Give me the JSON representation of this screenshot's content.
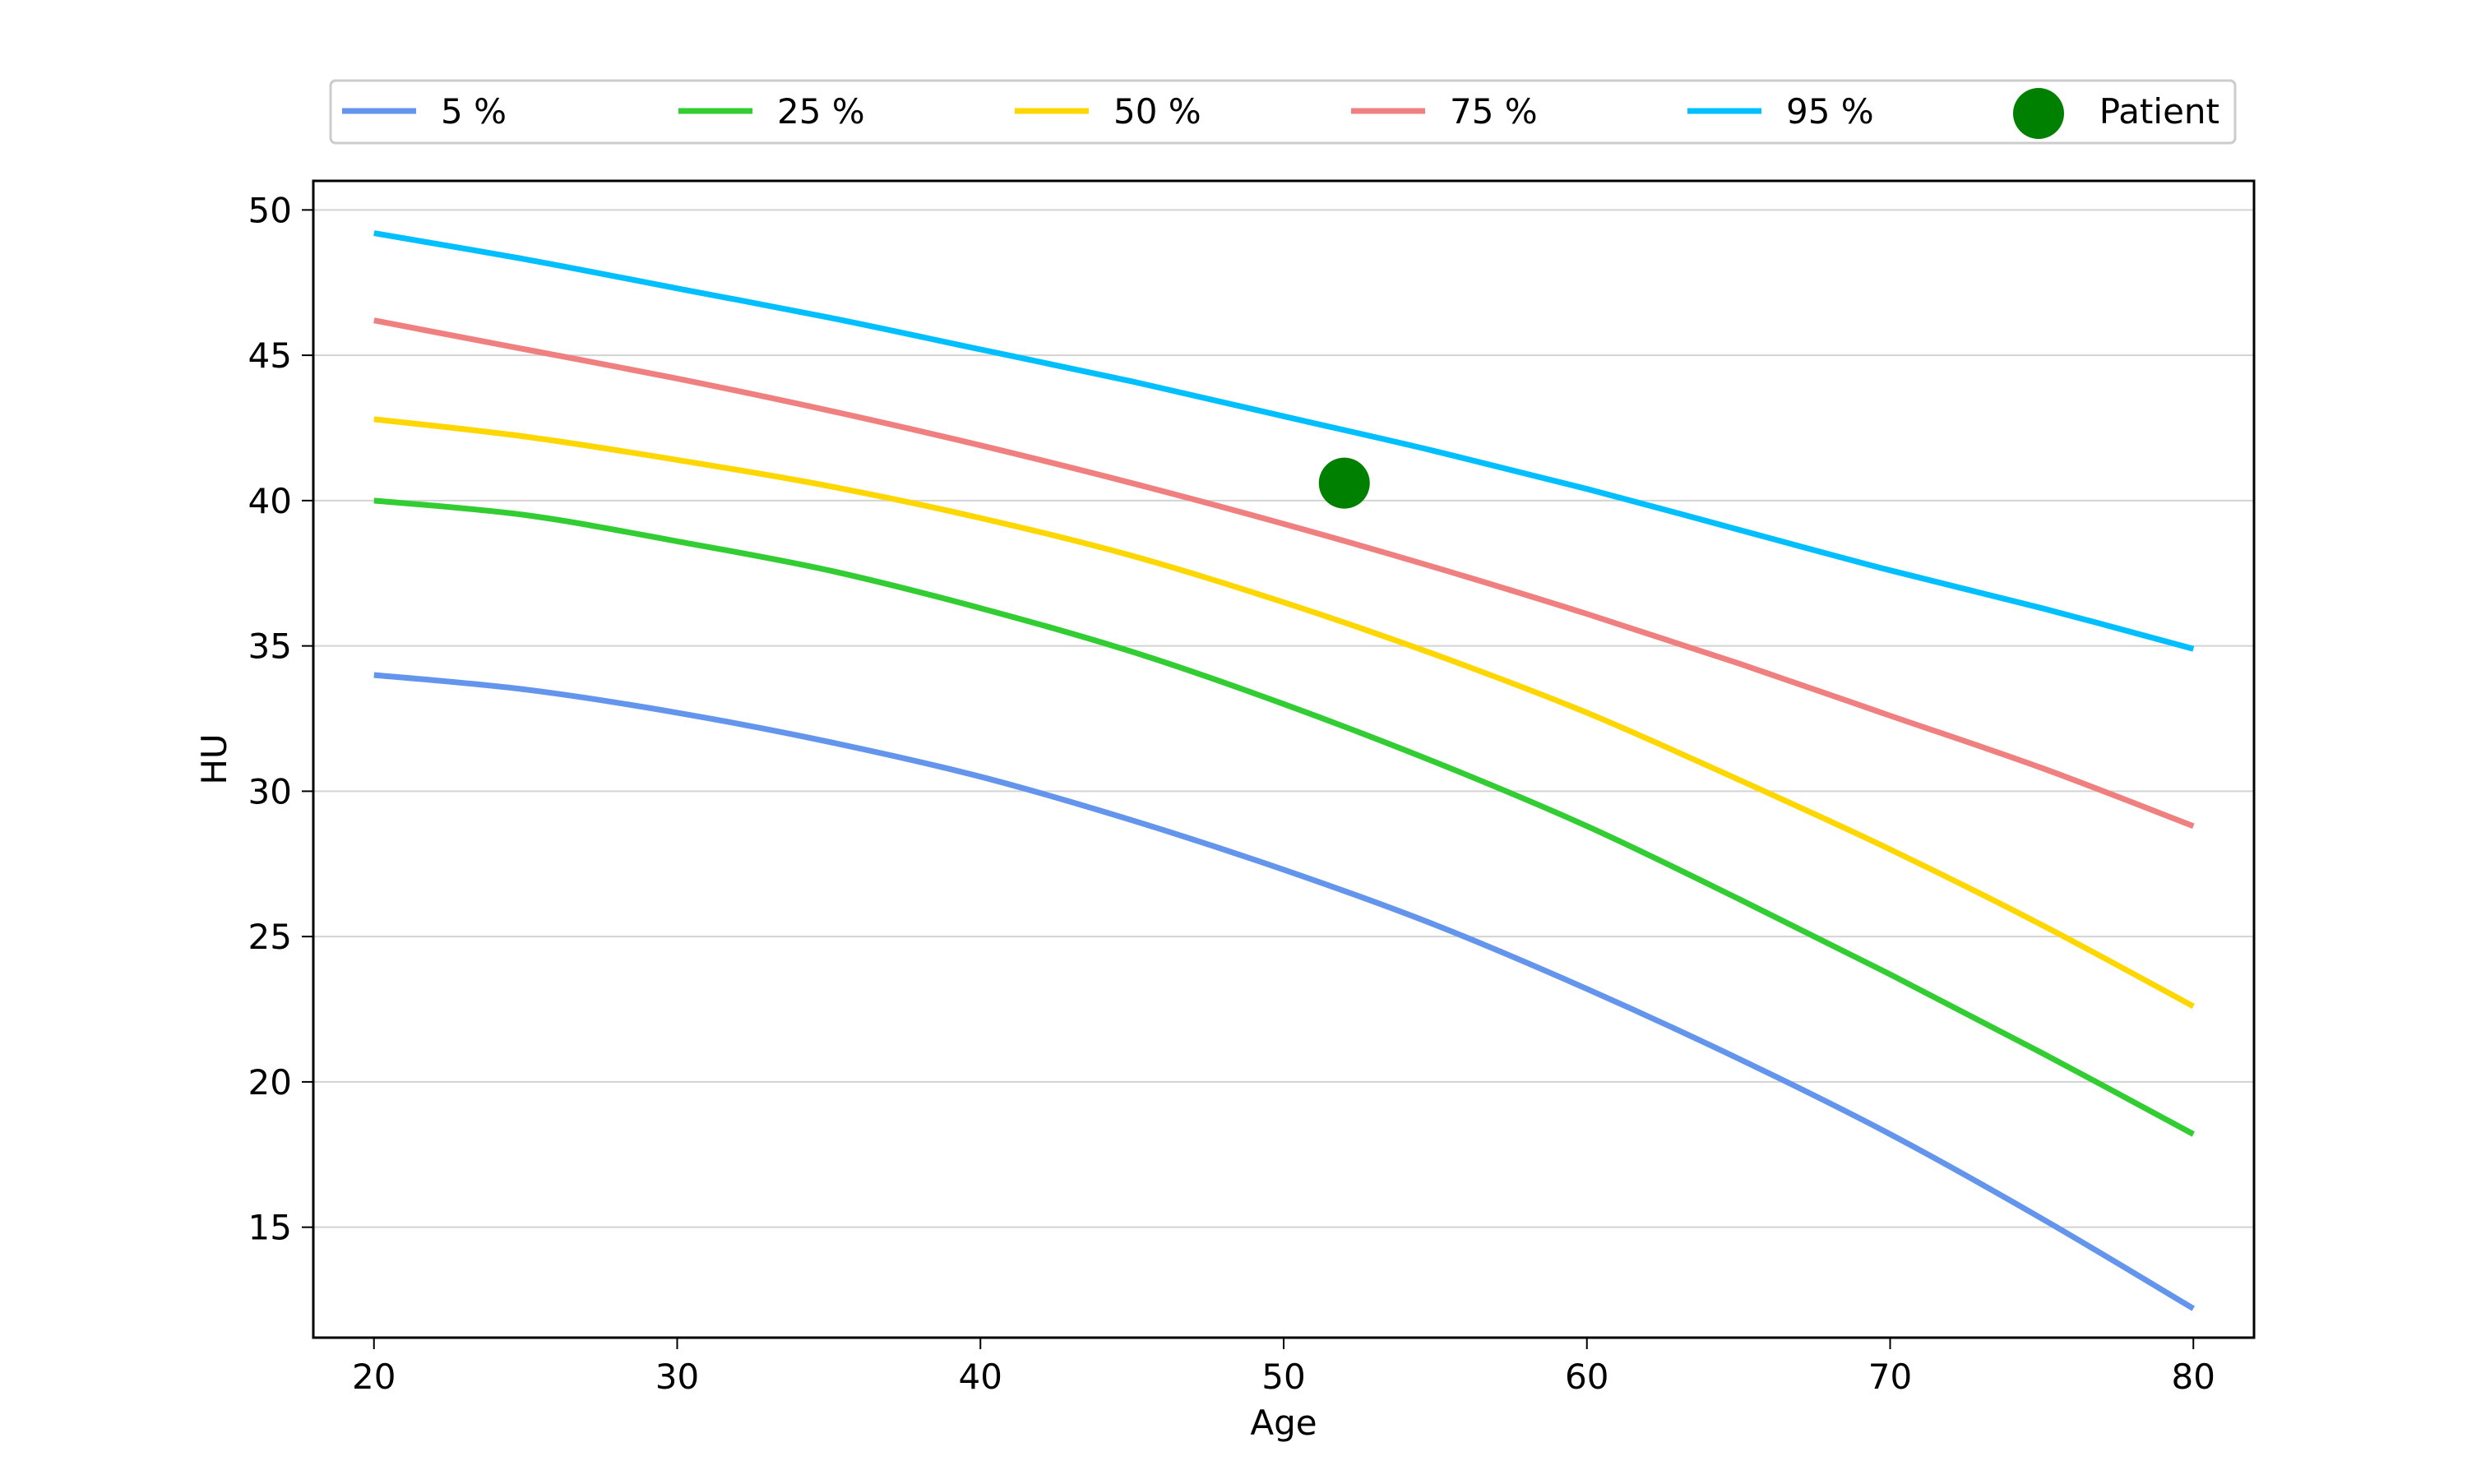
{
  "chart_data": {
    "type": "line",
    "xlabel": "Age",
    "ylabel": "HU",
    "xlim": [
      18,
      82
    ],
    "ylim": [
      11.2,
      51
    ],
    "xticks": [
      20,
      30,
      40,
      50,
      60,
      70,
      80
    ],
    "yticks": [
      15,
      20,
      25,
      30,
      35,
      40,
      45,
      50
    ],
    "grid": "horizontal",
    "legend_position": "top-center",
    "x": [
      20,
      25,
      30,
      35,
      40,
      45,
      50,
      55,
      60,
      65,
      70,
      75,
      80
    ],
    "series": [
      {
        "name": "5 %",
        "color": "#6495ED",
        "values": [
          34.0,
          33.5,
          32.7,
          31.7,
          30.5,
          29.0,
          27.3,
          25.4,
          23.2,
          20.8,
          18.2,
          15.3,
          12.2
        ]
      },
      {
        "name": "25 %",
        "color": "#32CD32",
        "values": [
          40.0,
          39.5,
          38.6,
          37.6,
          36.3,
          34.8,
          33.0,
          31.0,
          28.8,
          26.3,
          23.7,
          21.0,
          18.2
        ]
      },
      {
        "name": "50 %",
        "color": "#FFD700",
        "values": [
          42.8,
          42.2,
          41.4,
          40.5,
          39.4,
          38.1,
          36.5,
          34.7,
          32.7,
          30.4,
          28.0,
          25.4,
          22.6
        ]
      },
      {
        "name": "75 %",
        "color": "#F08080",
        "values": [
          46.2,
          45.2,
          44.2,
          43.1,
          41.9,
          40.6,
          39.2,
          37.7,
          36.1,
          34.4,
          32.6,
          30.8,
          28.8
        ]
      },
      {
        "name": "95 %",
        "color": "#00BFFF",
        "values": [
          49.2,
          48.3,
          47.3,
          46.3,
          45.2,
          44.1,
          42.9,
          41.7,
          40.4,
          39.0,
          37.6,
          36.3,
          34.9
        ]
      }
    ],
    "points": [
      {
        "name": "Patient",
        "color": "#008000",
        "x": 52,
        "y": 40.6
      }
    ]
  }
}
